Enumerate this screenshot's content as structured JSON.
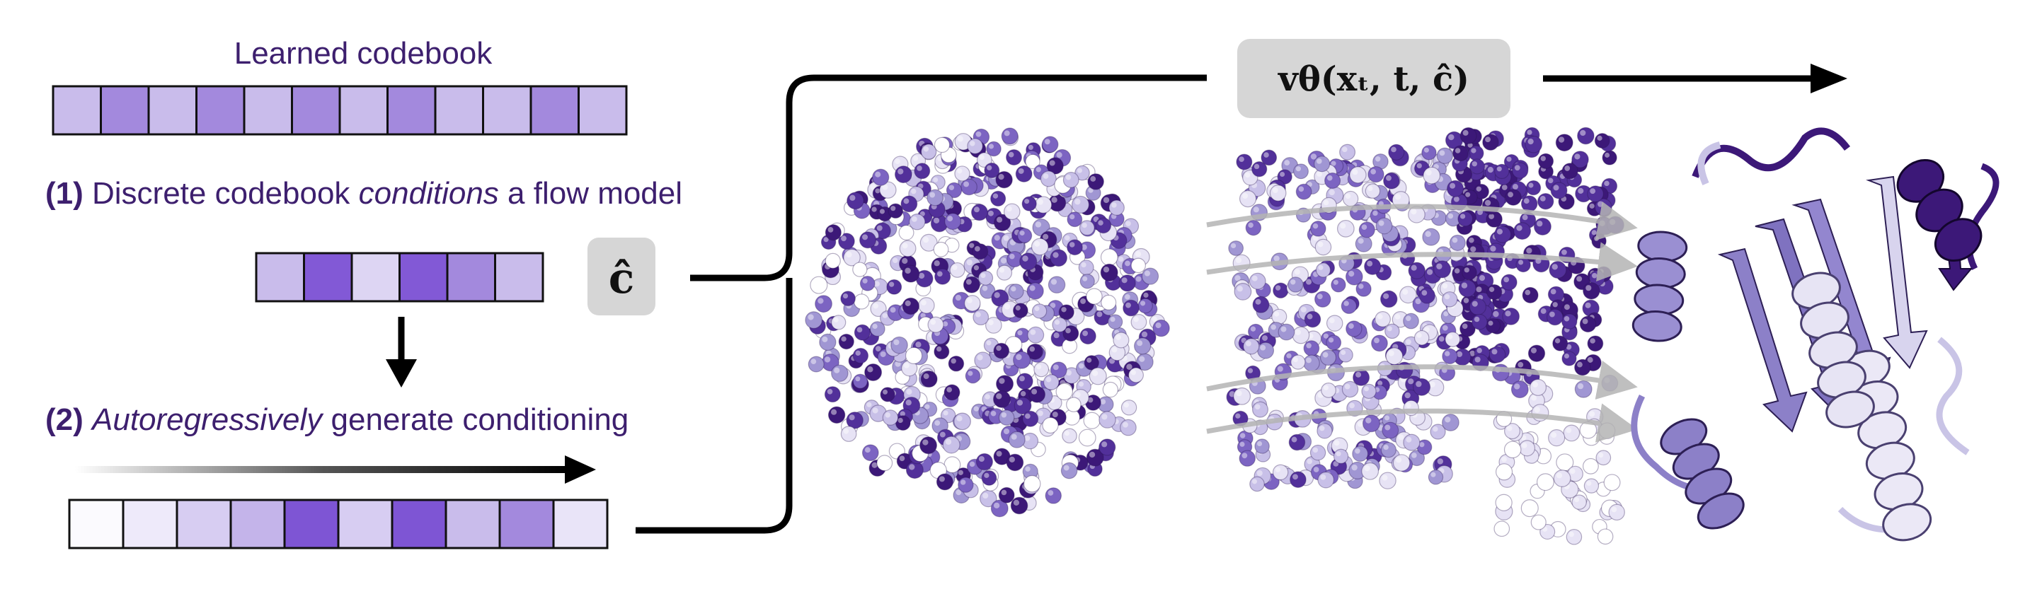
{
  "codebook": {
    "title": "Learned codebook",
    "cell_colors": [
      "#c9bceb",
      "#a389dd",
      "#c9bceb",
      "#a389dd",
      "#c9bceb",
      "#a389dd",
      "#c9bceb",
      "#a389dd",
      "#c9bceb",
      "#c9bceb",
      "#a389dd",
      "#c9bceb"
    ]
  },
  "step1": {
    "number": "(1)",
    "text_before": " Discrete codebook ",
    "text_emph": "conditions",
    "text_after": " a flow model",
    "cell_colors": [
      "#c9bceb",
      "#8259d6",
      "#ddd5f3",
      "#8259d6",
      "#a389dd",
      "#c9bceb"
    ]
  },
  "c_hat_label": "ĉ",
  "step2": {
    "number": "(2)",
    "text_emph": "Autoregressively",
    "text_after": " generate conditioning",
    "cell_colors": [
      "#fbfafe",
      "#eeeafa",
      "#d7cdf2",
      "#c4b4ea",
      "#7e55d4",
      "#d7cdf2",
      "#7e55d4",
      "#c9bceb",
      "#a389dd",
      "#e9e4f8"
    ]
  },
  "velocity_label": "vθ(xₜ, t, ĉ)",
  "colors": {
    "text_purple": "#3d1f6e",
    "arrow": "#000000",
    "label_box": "#d6d6d6",
    "flow_arrow": "#b4b4b4",
    "protein_dark": "#3c1878",
    "protein_mid": "#8c80c8",
    "protein_light": "#e7e4f4"
  },
  "icons": {
    "noise_cloud": "noise-point-cloud-icon",
    "intermediate_cloud": "intermediate-point-cloud-icon",
    "protein": "protein-structure-icon"
  }
}
